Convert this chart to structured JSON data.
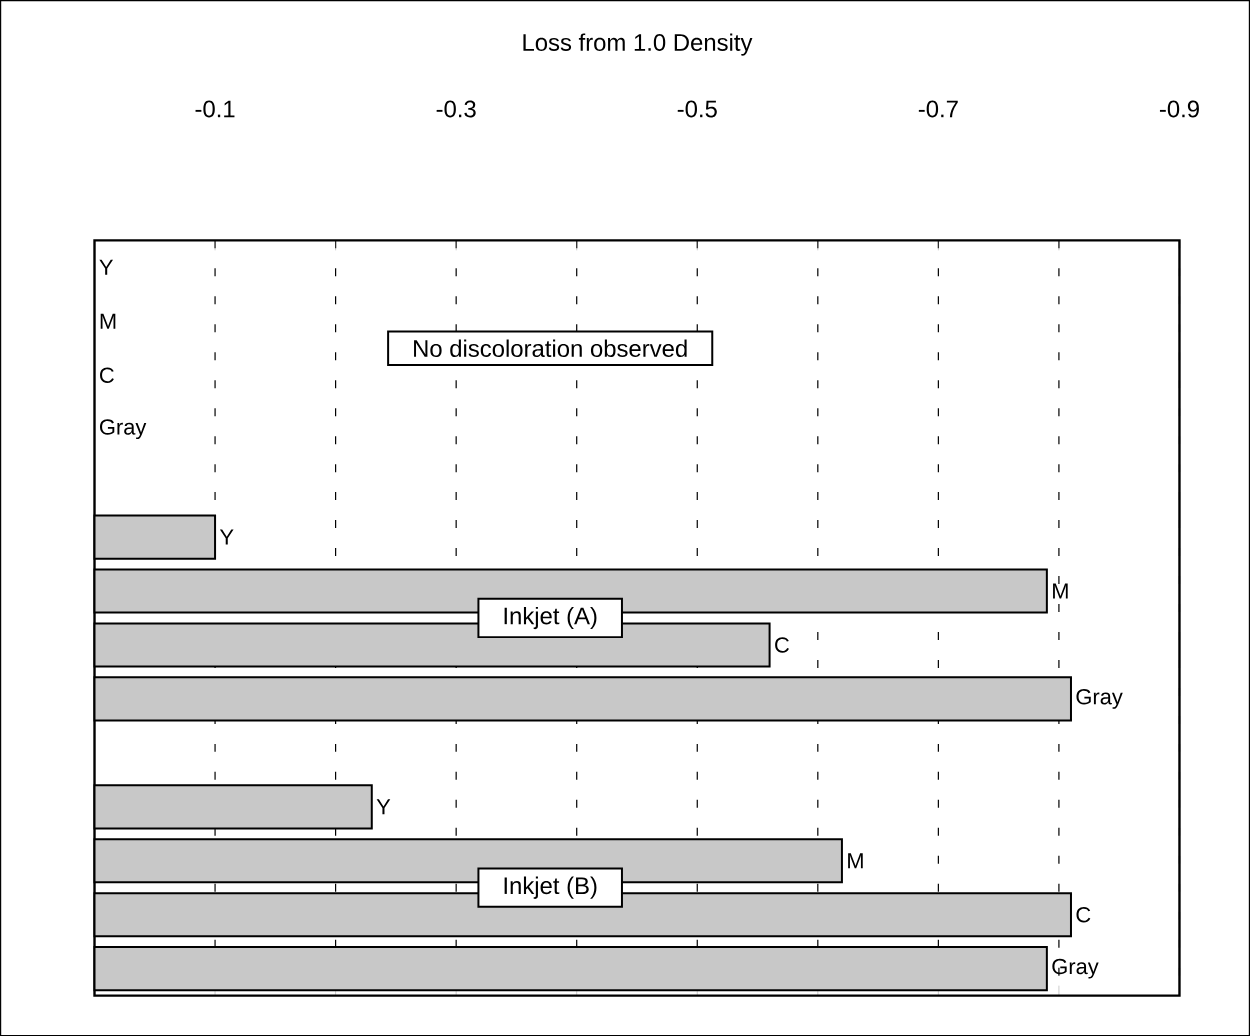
{
  "chart_data": {
    "type": "bar",
    "orientation": "horizontal",
    "xlabel": "Loss from 1.0 Density",
    "categories": [
      "Y",
      "M",
      "C",
      "Gray",
      null,
      "Y",
      "M",
      "C",
      "Gray",
      null,
      "Y",
      "M",
      "C",
      "Gray"
    ],
    "values": [
      0,
      0,
      0,
      0,
      null,
      -0.1,
      -0.79,
      -0.56,
      -0.81,
      null,
      -0.23,
      -0.62,
      -0.81,
      -0.79
    ],
    "color": "#c8c8c8",
    "xlim": [
      0,
      -0.9
    ],
    "xticks": [
      -0.1,
      {
        "value": -0.2,
        "label": null
      },
      -0.3,
      {
        "value": -0.4,
        "label": null
      },
      -0.5,
      {
        "value": -0.6,
        "label": null
      },
      -0.7,
      {
        "value": -0.8,
        "label": null
      },
      -0.9
    ],
    "annotations": [
      "No discoloration observed",
      "Inkjet (A)",
      "Inkjet (B)"
    ],
    "grid": "x",
    "tick_labels": "x"
  }
}
